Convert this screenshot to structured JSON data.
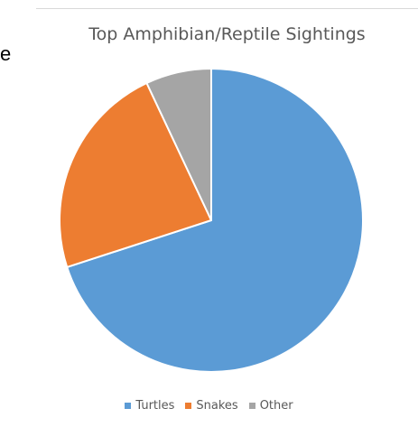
{
  "page": {
    "stray_text": "e"
  },
  "chart_data": {
    "type": "pie",
    "title": "Top Amphibian/Reptile Sightings",
    "categories": [
      "Turtles",
      "Snakes",
      "Other"
    ],
    "values": [
      70,
      23,
      7
    ],
    "colors": [
      "#5b9bd5",
      "#ed7d31",
      "#a5a5a5"
    ],
    "legend_position": "bottom",
    "start_angle": "12 o'clock, clockwise"
  }
}
